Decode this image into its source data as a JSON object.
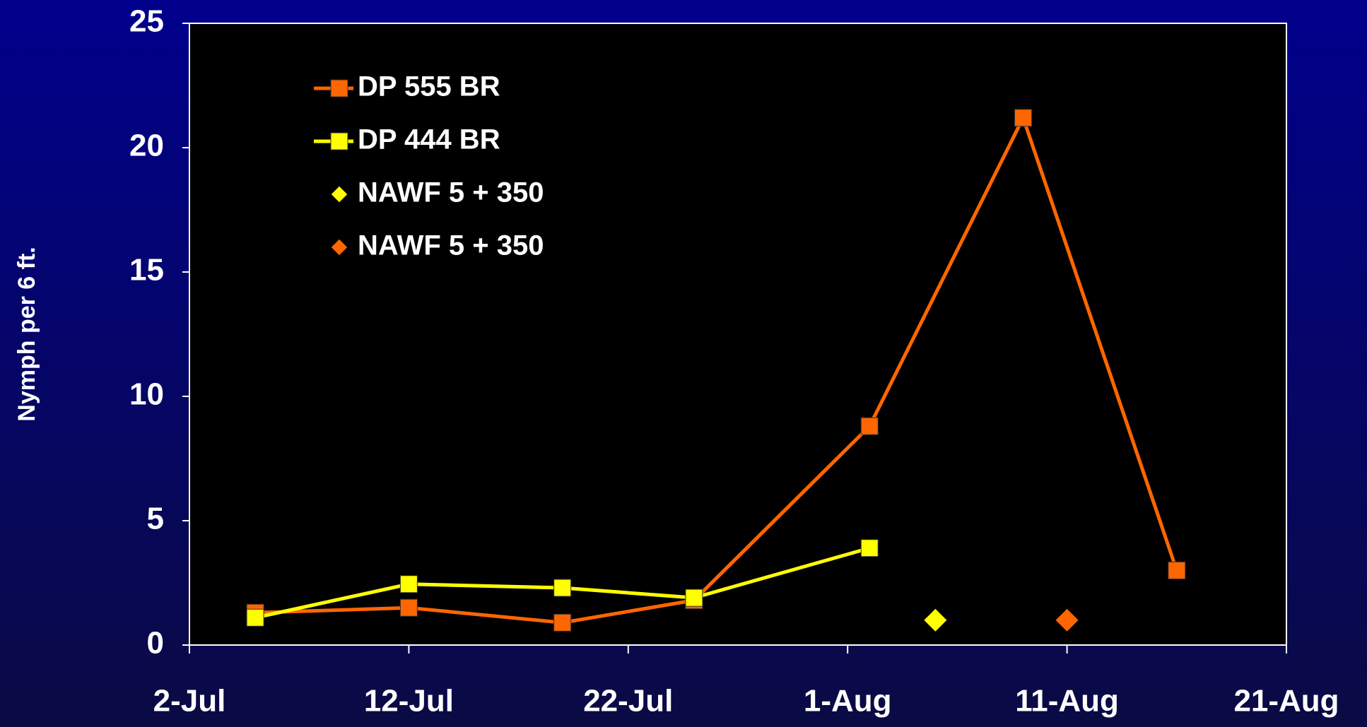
{
  "chart_data": {
    "type": "line",
    "y_label": "Nymph per 6 ft.",
    "xlim": [
      183,
      233
    ],
    "xticks": [
      {
        "value": 183,
        "label": "2-Jul"
      },
      {
        "value": 193,
        "label": "12-Jul"
      },
      {
        "value": 203,
        "label": "22-Jul"
      },
      {
        "value": 213,
        "label": "1-Aug"
      },
      {
        "value": 223,
        "label": "11-Aug"
      },
      {
        "value": 233,
        "label": "21-Aug"
      }
    ],
    "ylim": [
      0,
      25
    ],
    "yticks": [
      0,
      5,
      10,
      15,
      20,
      25
    ],
    "series": [
      {
        "name": "DP 555 BR",
        "color": "#ff6600",
        "marker": "square",
        "connected": true,
        "x": [
          186,
          193,
          200,
          206,
          214,
          221,
          228
        ],
        "values": [
          1.3,
          1.5,
          0.9,
          1.8,
          8.8,
          21.2,
          3.0
        ]
      },
      {
        "name": "DP 444 BR",
        "color": "#ffff00",
        "marker": "square",
        "connected": true,
        "x": [
          186,
          193,
          200,
          206,
          214
        ],
        "values": [
          1.1,
          2.45,
          2.3,
          1.9,
          3.9
        ]
      },
      {
        "name": "NAWF 5 + 350",
        "color": "#ffff00",
        "marker": "diamond",
        "connected": false,
        "x": [
          217
        ],
        "values": [
          1.0
        ]
      },
      {
        "name": "NAWF 5 + 350",
        "color": "#ff6600",
        "marker": "diamond",
        "connected": false,
        "x": [
          223
        ],
        "values": [
          1.0
        ]
      }
    ]
  }
}
